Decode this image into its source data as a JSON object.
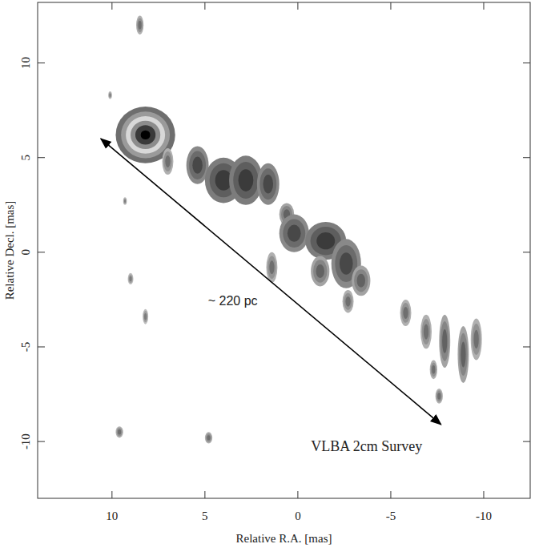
{
  "chart_data": {
    "type": "image",
    "x_label": "Relative R.A. [mas]",
    "y_label": "Relative Decl. [mas]",
    "xlim": [
      14,
      -12.5
    ],
    "ylim": [
      -13,
      13.2
    ],
    "xticks": [
      10,
      5,
      0,
      -5,
      -10
    ],
    "yticks": [
      -10,
      -5,
      0,
      5,
      10
    ],
    "grid": false,
    "components": [
      {
        "ra": 8.2,
        "dec": 6.2,
        "width": 1.6,
        "height": 1.5,
        "intensity": 1.0
      },
      {
        "ra": 7.0,
        "dec": 4.8,
        "width": 0.3,
        "height": 0.7,
        "intensity": 0.3
      },
      {
        "ra": 5.4,
        "dec": 4.6,
        "width": 0.6,
        "height": 1.0,
        "intensity": 0.6
      },
      {
        "ra": 4.0,
        "dec": 3.8,
        "width": 1.0,
        "height": 1.2,
        "intensity": 0.7
      },
      {
        "ra": 2.8,
        "dec": 3.8,
        "width": 0.9,
        "height": 1.3,
        "intensity": 0.7
      },
      {
        "ra": 1.6,
        "dec": 3.6,
        "width": 0.6,
        "height": 1.1,
        "intensity": 0.6
      },
      {
        "ra": 0.6,
        "dec": 2.0,
        "width": 0.4,
        "height": 0.6,
        "intensity": 0.4
      },
      {
        "ra": 0.2,
        "dec": 1.0,
        "width": 0.8,
        "height": 1.0,
        "intensity": 0.6
      },
      {
        "ra": -1.5,
        "dec": 0.6,
        "width": 1.1,
        "height": 1.0,
        "intensity": 0.7
      },
      {
        "ra": -2.6,
        "dec": -0.6,
        "width": 0.8,
        "height": 1.3,
        "intensity": 0.6
      },
      {
        "ra": -1.2,
        "dec": -1.0,
        "width": 0.5,
        "height": 0.8,
        "intensity": 0.4
      },
      {
        "ra": -3.4,
        "dec": -1.5,
        "width": 0.5,
        "height": 0.8,
        "intensity": 0.4
      },
      {
        "ra": 1.4,
        "dec": -0.8,
        "width": 0.3,
        "height": 0.8,
        "intensity": 0.3
      },
      {
        "ra": -2.7,
        "dec": -2.6,
        "width": 0.3,
        "height": 0.6,
        "intensity": 0.3
      },
      {
        "ra": -5.8,
        "dec": -3.2,
        "width": 0.3,
        "height": 0.7,
        "intensity": 0.3
      },
      {
        "ra": -6.9,
        "dec": -4.2,
        "width": 0.3,
        "height": 0.9,
        "intensity": 0.3
      },
      {
        "ra": -7.9,
        "dec": -4.7,
        "width": 0.3,
        "height": 1.4,
        "intensity": 0.4
      },
      {
        "ra": -8.9,
        "dec": -5.4,
        "width": 0.3,
        "height": 1.5,
        "intensity": 0.4
      },
      {
        "ra": -9.6,
        "dec": -4.6,
        "width": 0.3,
        "height": 1.1,
        "intensity": 0.3
      },
      {
        "ra": -7.3,
        "dec": -6.2,
        "width": 0.2,
        "height": 0.5,
        "intensity": 0.3
      },
      {
        "ra": -7.6,
        "dec": -7.6,
        "width": 0.2,
        "height": 0.4,
        "intensity": 0.3
      },
      {
        "ra": 8.5,
        "dec": 12.0,
        "width": 0.2,
        "height": 0.5,
        "intensity": 0.3
      },
      {
        "ra": 9.6,
        "dec": -9.5,
        "width": 0.2,
        "height": 0.3,
        "intensity": 0.3
      },
      {
        "ra": 4.8,
        "dec": -9.8,
        "width": 0.2,
        "height": 0.3,
        "intensity": 0.3
      },
      {
        "ra": 9.0,
        "dec": -1.4,
        "width": 0.15,
        "height": 0.3,
        "intensity": 0.2
      },
      {
        "ra": 8.2,
        "dec": -3.4,
        "width": 0.15,
        "height": 0.4,
        "intensity": 0.2
      },
      {
        "ra": 9.3,
        "dec": 2.7,
        "width": 0.1,
        "height": 0.2,
        "intensity": 0.2
      },
      {
        "ra": 10.1,
        "dec": 8.3,
        "width": 0.1,
        "height": 0.2,
        "intensity": 0.2
      }
    ],
    "annotations": [
      {
        "text": "~ 220 pc",
        "x": 3.5,
        "y": -2.8,
        "arrow_x": [
          10.6,
          -7.7
        ],
        "arrow_y": [
          6.0,
          -9.1
        ]
      },
      {
        "text": "VLBA 2cm Survey",
        "x": -0.7,
        "y": -10.5
      }
    ]
  }
}
